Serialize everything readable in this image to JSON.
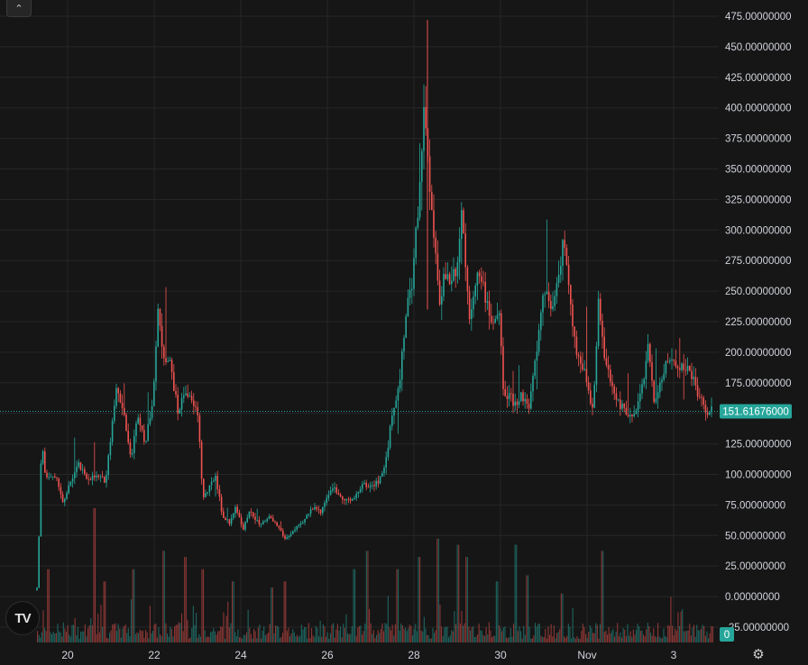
{
  "toolbar": {
    "collapse_icon": "chevron-up-icon",
    "collapse_glyph": "⌃"
  },
  "logo": {
    "text": "TV",
    "icon": "tradingview-logo-icon"
  },
  "settings": {
    "icon": "gear-icon",
    "glyph": "⚙"
  },
  "colors": {
    "background": "#161616",
    "grid": "#262626",
    "up": "#26a69a",
    "down": "#ef5350",
    "axis_text": "#d1d4dc",
    "price_line": "#26a69a"
  },
  "chart_data": {
    "type": "candlestick",
    "x_ticks": [
      "20",
      "22",
      "24",
      "26",
      "28",
      "30",
      "Nov",
      "3"
    ],
    "y_ticks": [
      "475.00000000",
      "450.00000000",
      "425.00000000",
      "400.00000000",
      "375.00000000",
      "350.00000000",
      "325.00000000",
      "300.00000000",
      "275.00000000",
      "250.00000000",
      "225.00000000",
      "200.00000000",
      "175.00000000",
      "150.00000000",
      "125.00000000",
      "100.00000000",
      "75.00000000",
      "50.00000000",
      "25.00000000",
      "0.00000000",
      "-25.00000000"
    ],
    "ylim": [
      -35,
      485
    ],
    "x_range": [
      "Oct 19",
      "Nov 3"
    ],
    "last_price": "151.61676000",
    "last_price_value": 151.61676,
    "volume_label": "0",
    "grid": true,
    "price_path": [
      [
        0,
        5
      ],
      [
        0.04,
        10
      ],
      [
        0.08,
        95
      ],
      [
        0.12,
        132
      ],
      [
        0.16,
        100
      ],
      [
        0.3,
        98
      ],
      [
        0.45,
        93
      ],
      [
        0.55,
        75
      ],
      [
        0.7,
        95
      ],
      [
        0.85,
        108
      ],
      [
        1.0,
        97
      ],
      [
        1.2,
        98
      ],
      [
        1.4,
        95
      ],
      [
        1.6,
        170
      ],
      [
        1.75,
        155
      ],
      [
        1.9,
        112
      ],
      [
        2.05,
        150
      ],
      [
        2.2,
        125
      ],
      [
        2.35,
        165
      ],
      [
        2.45,
        232
      ],
      [
        2.55,
        200
      ],
      [
        2.7,
        190
      ],
      [
        2.85,
        150
      ],
      [
        3.0,
        170
      ],
      [
        3.1,
        160
      ],
      [
        3.25,
        150
      ],
      [
        3.35,
        80
      ],
      [
        3.5,
        90
      ],
      [
        3.6,
        100
      ],
      [
        3.75,
        65
      ],
      [
        3.9,
        60
      ],
      [
        4.0,
        75
      ],
      [
        4.15,
        55
      ],
      [
        4.3,
        70
      ],
      [
        4.5,
        58
      ],
      [
        4.7,
        65
      ],
      [
        4.9,
        55
      ],
      [
        5.0,
        47
      ],
      [
        5.2,
        55
      ],
      [
        5.35,
        60
      ],
      [
        5.5,
        70
      ],
      [
        5.6,
        75
      ],
      [
        5.7,
        68
      ],
      [
        5.8,
        78
      ],
      [
        5.95,
        90
      ],
      [
        6.05,
        85
      ],
      [
        6.2,
        80
      ],
      [
        6.35,
        78
      ],
      [
        6.45,
        85
      ],
      [
        6.55,
        92
      ],
      [
        6.7,
        90
      ],
      [
        6.9,
        95
      ],
      [
        7.05,
        115
      ],
      [
        7.15,
        152
      ],
      [
        7.3,
        175
      ],
      [
        7.45,
        240
      ],
      [
        7.55,
        255
      ],
      [
        7.6,
        290
      ],
      [
        7.7,
        330
      ],
      [
        7.75,
        375
      ],
      [
        7.8,
        400
      ],
      [
        7.85,
        380
      ],
      [
        7.9,
        330
      ],
      [
        8.0,
        290
      ],
      [
        8.1,
        240
      ],
      [
        8.2,
        265
      ],
      [
        8.3,
        260
      ],
      [
        8.45,
        270
      ],
      [
        8.55,
        320
      ],
      [
        8.6,
        285
      ],
      [
        8.7,
        230
      ],
      [
        8.85,
        265
      ],
      [
        9.0,
        250
      ],
      [
        9.15,
        225
      ],
      [
        9.3,
        230
      ],
      [
        9.4,
        160
      ],
      [
        9.5,
        165
      ],
      [
        9.6,
        158
      ],
      [
        9.75,
        165
      ],
      [
        9.9,
        155
      ],
      [
        10.05,
        200
      ],
      [
        10.2,
        255
      ],
      [
        10.35,
        235
      ],
      [
        10.5,
        265
      ],
      [
        10.6,
        298
      ],
      [
        10.65,
        270
      ],
      [
        10.8,
        210
      ],
      [
        10.9,
        195
      ],
      [
        11.05,
        180
      ],
      [
        11.15,
        155
      ],
      [
        11.2,
        160
      ],
      [
        11.3,
        248
      ],
      [
        11.4,
        195
      ],
      [
        11.55,
        175
      ],
      [
        11.65,
        160
      ],
      [
        11.8,
        155
      ],
      [
        11.9,
        145
      ],
      [
        12.05,
        150
      ],
      [
        12.2,
        180
      ],
      [
        12.3,
        205
      ],
      [
        12.4,
        160
      ],
      [
        12.5,
        170
      ],
      [
        12.6,
        185
      ],
      [
        12.75,
        195
      ],
      [
        12.85,
        190
      ],
      [
        13.0,
        188
      ],
      [
        13.1,
        185
      ],
      [
        13.2,
        178
      ],
      [
        13.35,
        160
      ],
      [
        13.45,
        152
      ],
      [
        13.6,
        152
      ]
    ],
    "volume_spikes": [
      [
        0.15,
        75
      ],
      [
        0.45,
        60
      ],
      [
        1.5,
        110
      ],
      [
        1.75,
        50
      ],
      [
        2.4,
        60
      ],
      [
        3.1,
        75
      ],
      [
        3.6,
        70
      ],
      [
        4.0,
        60
      ],
      [
        4.7,
        50
      ],
      [
        5.6,
        45
      ],
      [
        5.9,
        50
      ],
      [
        7.5,
        60
      ],
      [
        7.8,
        75
      ],
      [
        8.5,
        60
      ],
      [
        9.0,
        70
      ],
      [
        9.45,
        85
      ],
      [
        9.9,
        80
      ],
      [
        10.1,
        70
      ],
      [
        10.8,
        50
      ],
      [
        11.25,
        80
      ],
      [
        11.5,
        55
      ],
      [
        12.3,
        40
      ],
      [
        13.25,
        75
      ]
    ]
  }
}
